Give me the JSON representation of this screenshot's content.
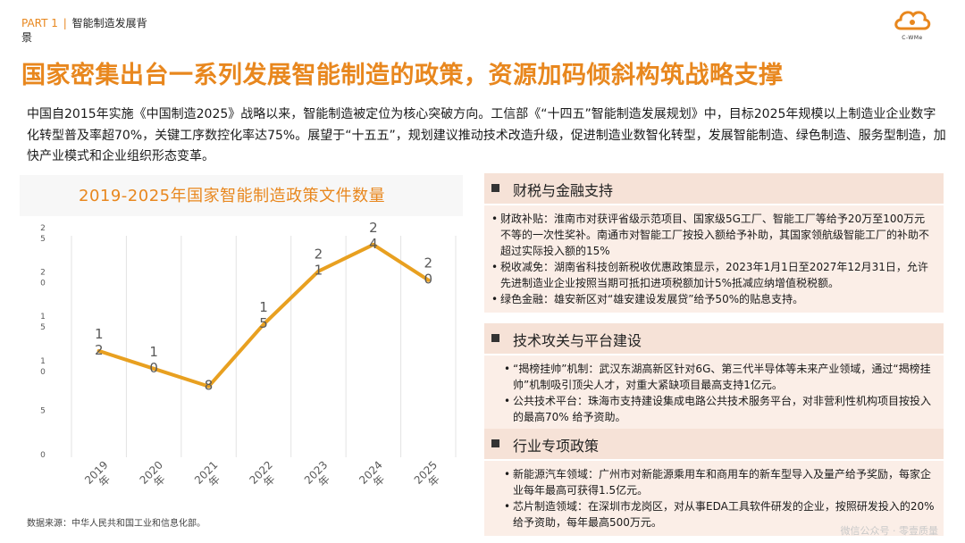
{
  "header": {
    "part_no": "PART 1",
    "part_sep": "|",
    "part_title": "智能制造发展背景",
    "logo_text": "C-WMe"
  },
  "main_title": "国家密集出台一系列发展智能制造的政策，资源加码倾斜构筑战略支撑",
  "intro": "中国自2015年实施《中国制造2025》战略以来，智能制造被定位为核心突破方向。工信部《“十四五”智能制造发展规划》中，目标2025年规模以上制造业企业数字化转型普及率超70%，关键工序数控化率达75%。展望于“十五五”，规划建议推动技术改造升级，促进制造业数智化转型，发展智能制造、绿色制造、服务型制造，加快产业模式和企业组织形态变革。",
  "chart_data": {
    "type": "line",
    "title": "2019-2025年国家智能制造政策文件数量",
    "categories": [
      "2019年",
      "2020年",
      "2021年",
      "2022年",
      "2023年",
      "2024年",
      "2025年"
    ],
    "series": [
      {
        "values": [
          12,
          10,
          8,
          15,
          21,
          24,
          20
        ]
      }
    ],
    "y_ticks": [
      "0",
      "5",
      "10",
      "15",
      "20",
      "25"
    ],
    "ylim": [
      0,
      25
    ],
    "xlabel": "",
    "ylabel": "",
    "grid": "vertical",
    "line_color": "#e8a020",
    "text_color": "#595959"
  },
  "source": "数据来源：中华人民共和国工业和信息化部。",
  "panels": [
    {
      "title": "财税与金融支持",
      "items": [
        "财政补贴：淮南市对获评省级示范项目、国家级5G工厂、智能工厂等给予20万至100万元不等的一次性奖补。南通市对智能工厂按投入额给予补助，其国家领航级智能工厂的补助不超过实际投入额的15%",
        "税收减免：湖南省科技创新税收优惠政策显示，2023年1月1日至2027年12月31日，允许先进制造业企业按照当期可抵扣进项税额加计5%抵减应纳增值税税额。",
        "绿色金融：雄安新区对“雄安建设发展贷”给予50%的贴息支持。"
      ]
    },
    {
      "title": "技术攻关与平台建设",
      "items": [
        "“揭榜挂帅”机制：武汉东湖高新区针对6G、第三代半导体等未来产业领域，通过“揭榜挂帅”机制吸引顶尖人才，对重大紧缺项目最高支持1亿元。",
        "公共技术平台：珠海市支持建设集成电路公共技术服务平台，对非营利性机构项目按投入的最高70% 给予资助。"
      ]
    },
    {
      "title": "行业专项政策",
      "items": [
        "新能源汽车领域：广州市对新能源乘用车和商用车的新车型导入及量产给予奖励，每家企业每年最高可获得1.5亿元。",
        "芯片制造领域：在深圳市龙岗区，对从事EDA工具软件研发的企业，按照研发投入的20% 给予资助，每年最高500万元。"
      ]
    }
  ],
  "watermark": "微信公众号 · 零壹质量",
  "colors": {
    "accent": "#e8871e",
    "panel_head": "#f6e2d7",
    "panel_body": "#fbeee7"
  },
  "icons": {
    "bullet": "square-bullet-icon",
    "logo": "cloud-logo-icon"
  }
}
